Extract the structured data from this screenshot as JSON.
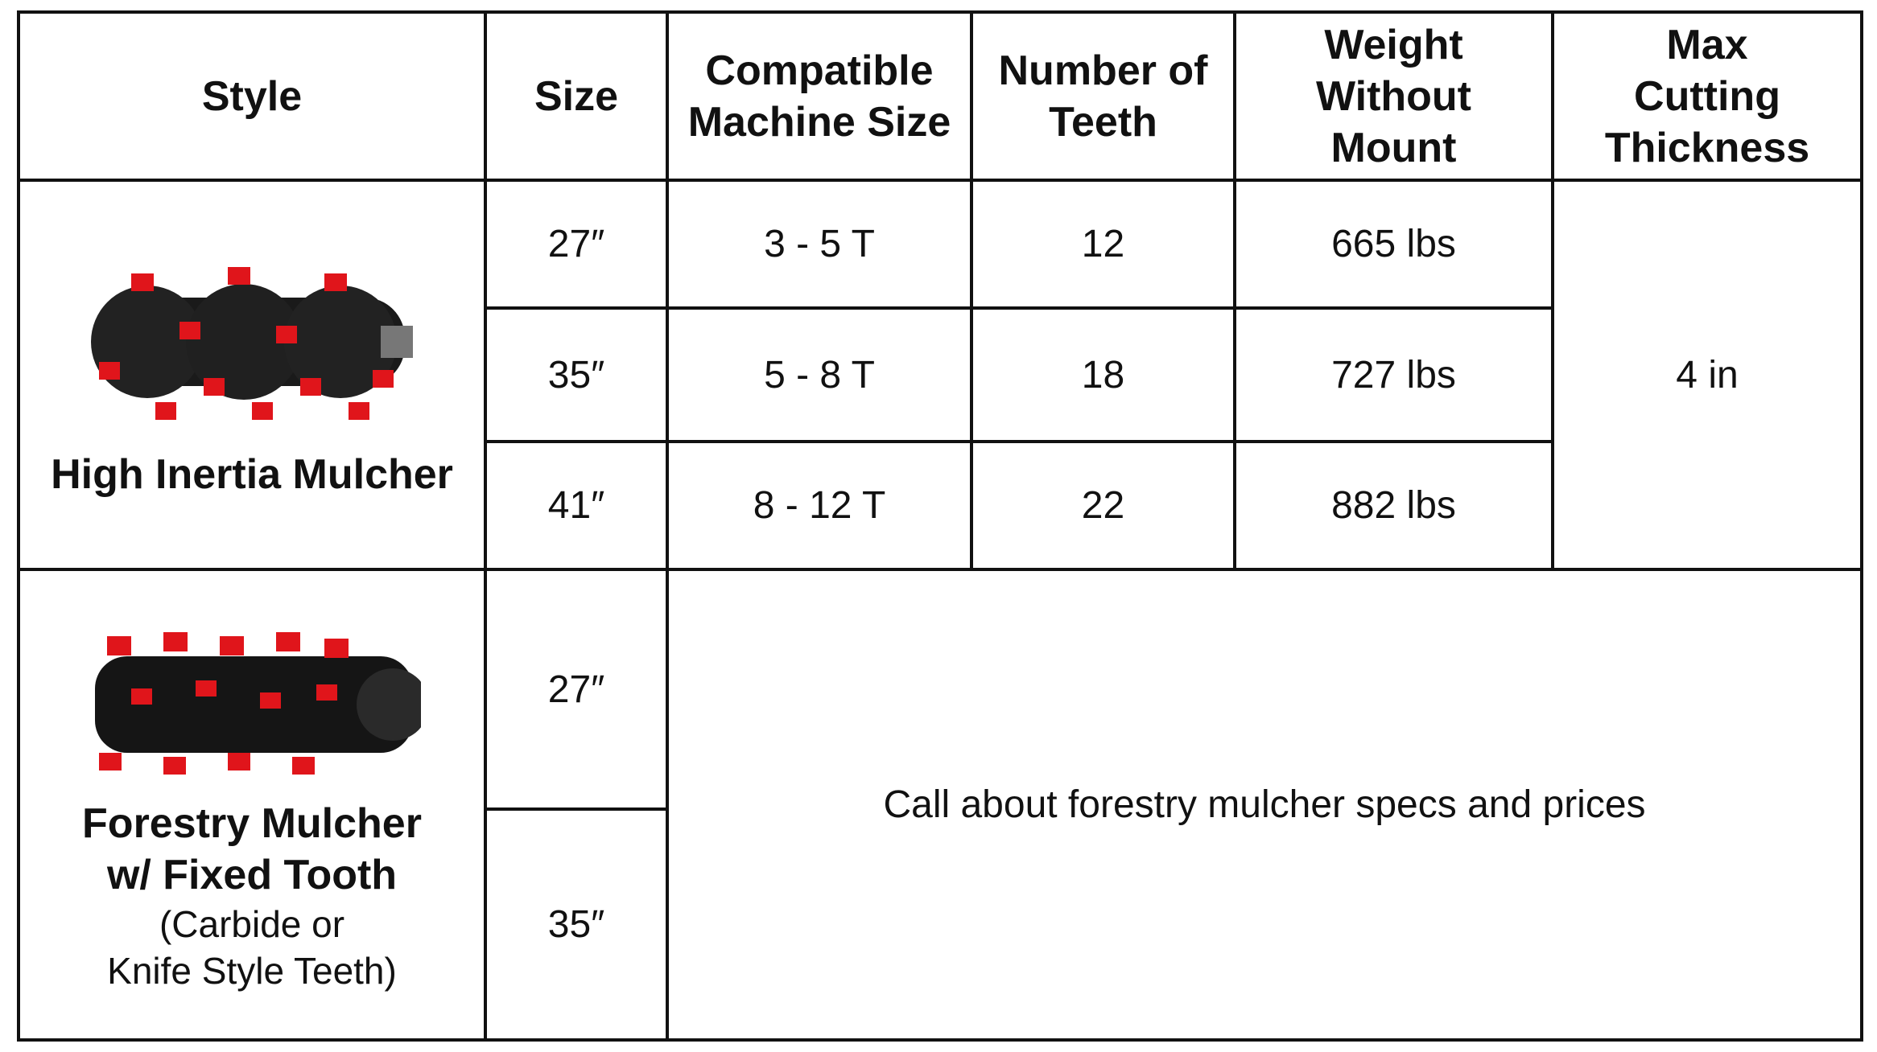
{
  "table": {
    "headers": [
      [
        "Style"
      ],
      [
        "Size"
      ],
      [
        "Compatible",
        "Machine Size"
      ],
      [
        "Number of",
        "Teeth"
      ],
      [
        "Weight",
        "Without",
        "Mount"
      ],
      [
        "Max",
        "Cutting",
        "Thickness"
      ]
    ],
    "groups": [
      {
        "style": [
          "High Inertia Mulcher"
        ],
        "rows": [
          {
            "size": "27″",
            "machine": "3 - 5 T",
            "teeth": 12,
            "weight": "665 lbs"
          },
          {
            "size": "35″",
            "machine": "5 - 8 T",
            "teeth": 18,
            "weight": "727 lbs"
          },
          {
            "size": "41″",
            "machine": "8 - 12 T",
            "teeth": 22,
            "weight": "882 lbs"
          }
        ],
        "max_cutting": "4 in"
      },
      {
        "style": [
          "Forestry Mulcher",
          "w/ Fixed Tooth"
        ],
        "style_note": [
          "(Carbide or",
          "Knife Style Teeth)"
        ],
        "sizes": [
          "27″",
          "35″"
        ],
        "note": "Call about forestry mulcher specs and prices"
      }
    ]
  }
}
